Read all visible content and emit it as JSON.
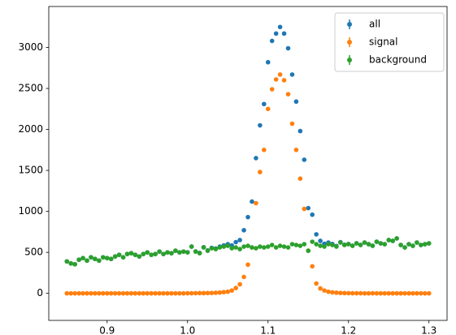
{
  "chart_data": {
    "type": "scatter",
    "x": [
      0.85,
      0.855,
      0.86,
      0.865,
      0.87,
      0.875,
      0.88,
      0.885,
      0.89,
      0.895,
      0.9,
      0.905,
      0.91,
      0.915,
      0.92,
      0.925,
      0.93,
      0.935,
      0.94,
      0.945,
      0.95,
      0.955,
      0.96,
      0.965,
      0.97,
      0.975,
      0.98,
      0.985,
      0.99,
      0.995,
      1.0,
      1.005,
      1.01,
      1.015,
      1.02,
      1.025,
      1.03,
      1.035,
      1.04,
      1.045,
      1.05,
      1.055,
      1.06,
      1.065,
      1.07,
      1.075,
      1.08,
      1.085,
      1.09,
      1.095,
      1.1,
      1.105,
      1.11,
      1.115,
      1.12,
      1.125,
      1.13,
      1.135,
      1.14,
      1.145,
      1.15,
      1.155,
      1.16,
      1.165,
      1.17,
      1.175,
      1.18,
      1.185,
      1.19,
      1.195,
      1.2,
      1.205,
      1.21,
      1.215,
      1.22,
      1.225,
      1.23,
      1.235,
      1.24,
      1.245,
      1.25,
      1.255,
      1.26,
      1.265,
      1.27,
      1.275,
      1.28,
      1.285,
      1.29,
      1.295,
      1.3
    ],
    "series": [
      {
        "name": "all",
        "color": "#1f77b4",
        "values": [
          390,
          365,
          355,
          410,
          430,
          400,
          440,
          420,
          400,
          440,
          430,
          420,
          450,
          470,
          440,
          480,
          490,
          470,
          450,
          480,
          500,
          470,
          480,
          510,
          480,
          500,
          490,
          520,
          500,
          510,
          501,
          571,
          512,
          493,
          563,
          524,
          555,
          547,
          570,
          585,
          600,
          585,
          625,
          650,
          770,
          930,
          1120,
          1650,
          2050,
          2310,
          2820,
          3080,
          3170,
          3250,
          3170,
          2990,
          2670,
          2340,
          1980,
          1630,
          1040,
          960,
          720,
          640,
          605,
          620,
          602,
          578,
          625,
          593,
          602,
          581,
          611,
          591,
          620,
          600,
          581,
          630,
          610,
          600,
          650,
          640,
          670,
          590,
          560,
          600,
          580,
          620,
          590,
          600,
          610
        ]
      },
      {
        "name": "signal",
        "color": "#ff7f0e",
        "values": [
          0,
          0,
          0,
          0,
          0,
          0,
          0,
          0,
          0,
          0,
          0,
          0,
          0,
          0,
          0,
          0,
          0,
          0,
          0,
          0,
          0,
          0,
          0,
          0,
          0,
          0,
          0,
          0,
          0,
          0,
          1,
          1,
          2,
          3,
          3,
          4,
          5,
          7,
          10,
          15,
          20,
          35,
          65,
          110,
          200,
          350,
          560,
          1100,
          1480,
          1750,
          2250,
          2490,
          2610,
          2670,
          2600,
          2430,
          2070,
          1750,
          1400,
          1030,
          520,
          330,
          120,
          60,
          35,
          20,
          12,
          8,
          5,
          3,
          2,
          1,
          1,
          1,
          0,
          0,
          1,
          0,
          0,
          0,
          0,
          0,
          0,
          0,
          0,
          0,
          0,
          0,
          0,
          0,
          0
        ]
      },
      {
        "name": "background",
        "color": "#2ca02c",
        "values": [
          390,
          365,
          355,
          410,
          430,
          400,
          440,
          420,
          400,
          440,
          430,
          420,
          450,
          470,
          440,
          480,
          490,
          470,
          450,
          480,
          500,
          470,
          480,
          510,
          480,
          500,
          490,
          520,
          500,
          510,
          500,
          570,
          510,
          490,
          560,
          520,
          550,
          540,
          560,
          570,
          580,
          550,
          560,
          540,
          570,
          580,
          560,
          550,
          570,
          560,
          570,
          590,
          560,
          580,
          570,
          560,
          600,
          590,
          580,
          600,
          520,
          630,
          600,
          580,
          570,
          600,
          590,
          570,
          620,
          590,
          600,
          580,
          610,
          590,
          620,
          600,
          580,
          630,
          610,
          600,
          650,
          640,
          670,
          590,
          560,
          600,
          580,
          620,
          590,
          600,
          610
        ]
      }
    ],
    "xlim": [
      0.8275,
      1.3225
    ],
    "ylim": [
      -330,
      3500
    ],
    "xticks": [
      0.9,
      {
        "value": 1,
        "label": "1.0"
      },
      1.1,
      1.2,
      1.3
    ],
    "yticks": [
      0,
      500,
      1000,
      1500,
      2000,
      2500,
      3000
    ],
    "legend": "upper right"
  }
}
